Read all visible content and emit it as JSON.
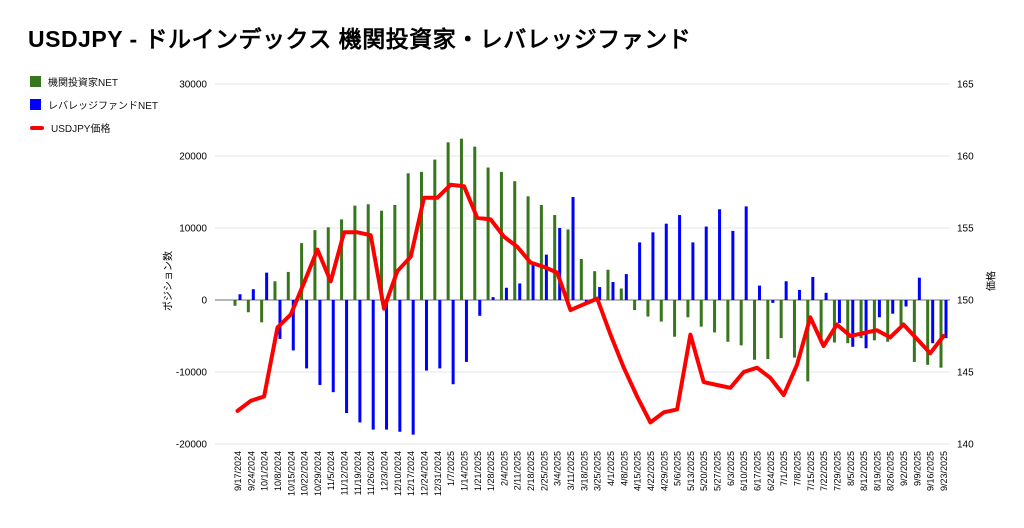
{
  "title": "USDJPY - ドルインデックス 機関投資家・レバレッジファンド",
  "legend": [
    {
      "label": "機関投資家NET",
      "color": "#38761d",
      "swatch": "square"
    },
    {
      "label": "レバレッジファンドNET",
      "color": "#0000ff",
      "swatch": "square"
    },
    {
      "label": "USDJPY価格",
      "color": "#ff0000",
      "swatch": "line-dash"
    }
  ],
  "axes": {
    "left": {
      "title": "ポジション数",
      "ticks": [
        30000,
        20000,
        10000,
        0,
        -10000,
        -20000
      ],
      "range": [
        -20000,
        30000
      ]
    },
    "right": {
      "title": "価格",
      "ticks": [
        165,
        160,
        155,
        150,
        145,
        140
      ],
      "range": [
        140,
        165
      ]
    }
  },
  "colors": {
    "background": "#ffffff",
    "grid": "#e6e6e6",
    "zero_line": "#b7b7b7",
    "text": "#000000",
    "institutional_green": "#38761d",
    "leverage_blue": "#0000ff",
    "price_red": "#ff0000"
  },
  "chart_data": {
    "type": "bar",
    "subtype": "grouped bars with overlaid line, dual y-axes",
    "grid": true,
    "legend_position": "top-left",
    "categories": [
      "9/17/2024",
      "9/24/2024",
      "10/1/2024",
      "10/8/2024",
      "10/15/2024",
      "10/22/2024",
      "10/29/2024",
      "11/5/2024",
      "11/12/2024",
      "11/19/2024",
      "11/26/2024",
      "12/3/2024",
      "12/10/2024",
      "12/17/2024",
      "12/24/2024",
      "12/31/2024",
      "1/7/2025",
      "1/14/2025",
      "1/21/2025",
      "1/28/2025",
      "2/4/2025",
      "2/11/2025",
      "2/18/2025",
      "2/25/2025",
      "3/4/2025",
      "3/11/2025",
      "3/18/2025",
      "3/25/2025",
      "4/1/2025",
      "4/8/2025",
      "4/15/2025",
      "4/22/2025",
      "4/29/2025",
      "5/6/2025",
      "5/13/2025",
      "5/20/2025",
      "5/27/2025",
      "6/3/2025",
      "6/10/2025",
      "6/17/2025",
      "6/24/2025",
      "7/1/2025",
      "7/8/2025",
      "7/15/2025",
      "7/22/2025",
      "7/29/2025",
      "8/5/2025",
      "8/12/2025",
      "8/19/2025",
      "8/26/2025",
      "9/2/2025",
      "9/9/2025",
      "9/16/2025",
      "9/23/2025"
    ],
    "xlabel": "",
    "ylabel_left": "ポジション数",
    "ylabel_right": "価格",
    "ylim_left": [
      -20000,
      30000
    ],
    "ylim_right": [
      140,
      165
    ],
    "series": [
      {
        "name": "機関投資家NET",
        "type": "bar",
        "axis": "left",
        "color": "#38761d",
        "values": [
          -800,
          -1700,
          -3100,
          2600,
          3900,
          7900,
          9700,
          10100,
          11200,
          13100,
          13300,
          12400,
          13200,
          17600,
          17800,
          19500,
          21900,
          22400,
          21300,
          18400,
          17800,
          16500,
          14400,
          13200,
          11800,
          9800,
          5700,
          4000,
          4200,
          1600,
          -1400,
          -2300,
          -3000,
          -5100,
          -2400,
          -3700,
          -4500,
          -5800,
          -6300,
          -8300,
          -8200,
          -5300,
          -8000,
          -11300,
          -6000,
          -5900,
          -6000,
          -5300,
          -5600,
          -5800,
          -3500,
          -8600,
          -9000,
          -9400
        ]
      },
      {
        "name": "レバレッジファンドNET",
        "type": "bar",
        "axis": "left",
        "color": "#0000ff",
        "values": [
          800,
          1500,
          3800,
          -5400,
          -7000,
          -9500,
          -11800,
          -12800,
          -15700,
          -17000,
          -18000,
          -18000,
          -18300,
          -18700,
          -9800,
          -9500,
          -11700,
          -8600,
          -2200,
          400,
          1700,
          2300,
          5300,
          6300,
          10000,
          14300,
          -600,
          1800,
          2500,
          3600,
          8000,
          9400,
          10600,
          11800,
          8000,
          10200,
          12600,
          9600,
          13000,
          2000,
          -400,
          2600,
          1400,
          3200,
          1000,
          -3200,
          -6500,
          -6700,
          -2400,
          -1900,
          -900,
          3100,
          -6000,
          -5300
        ]
      },
      {
        "name": "USDJPY価格",
        "type": "line",
        "axis": "right",
        "color": "#ff0000",
        "values": [
          142.3,
          143.0,
          143.3,
          148.1,
          149.0,
          151.2,
          153.5,
          151.3,
          154.7,
          154.7,
          154.5,
          149.4,
          152.0,
          153.0,
          157.1,
          157.1,
          158.0,
          157.9,
          155.7,
          155.6,
          154.4,
          153.7,
          152.6,
          152.3,
          151.9,
          149.3,
          149.7,
          150.1,
          147.6,
          145.3,
          143.3,
          141.5,
          142.2,
          142.4,
          147.6,
          144.3,
          144.1,
          143.9,
          145.0,
          145.3,
          144.6,
          143.4,
          145.5,
          148.8,
          146.8,
          148.3,
          147.5,
          147.7,
          147.9,
          147.4,
          148.3,
          147.3,
          146.3,
          147.5
        ]
      }
    ]
  }
}
